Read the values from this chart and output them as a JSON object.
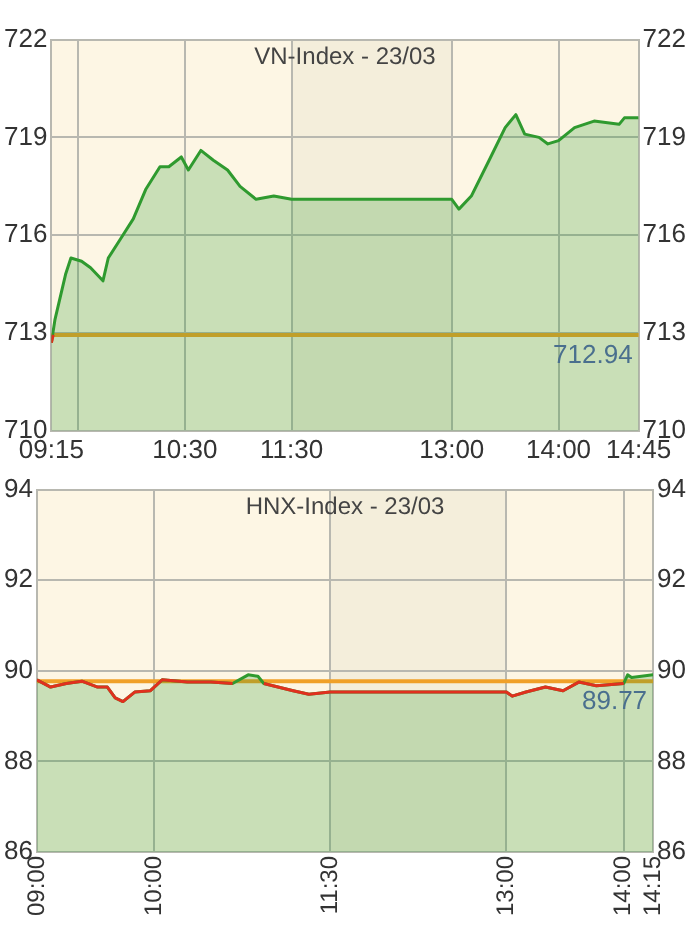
{
  "chart_data": [
    {
      "type": "area",
      "title": "VN-Index - 23/03",
      "grid": true,
      "xlim": [
        9.25,
        14.75
      ],
      "xticks": [
        {
          "value": 9.25,
          "label": "09:15"
        },
        {
          "value": 9.5,
          "label": null
        },
        {
          "value": 10.5,
          "label": "10:30"
        },
        {
          "value": 11.5,
          "label": "11:30"
        },
        {
          "value": 13,
          "label": "13:00"
        },
        {
          "value": 14,
          "label": "14:00"
        },
        {
          "value": 14.75,
          "label": "14:45"
        }
      ],
      "ylim": [
        710,
        722
      ],
      "yticks": [
        710,
        713,
        716,
        719,
        722
      ],
      "y2lim": [
        710,
        722
      ],
      "y2ticks": [
        710,
        713,
        716,
        719,
        722
      ],
      "ref_lines": [
        {
          "axis": "y",
          "value": 712.94,
          "label": "712.94",
          "color": "#f0a028"
        }
      ],
      "bands": [
        {
          "axis": "x",
          "from": 11.5,
          "to": 13,
          "color": "#f4eedb"
        }
      ],
      "series": [
        {
          "color": "#2f9a2f",
          "x": [
            9.25,
            9.283,
            9.383,
            9.433,
            9.533,
            9.617,
            9.733,
            9.783,
            9.9,
            10.017,
            10.133,
            10.267,
            10.35,
            10.467,
            10.533,
            10.65,
            10.767,
            10.9,
            11.017,
            11.167,
            11.333,
            11.5,
            13,
            13.067,
            13.183,
            13.35,
            13.5,
            13.6,
            13.683,
            13.817,
            13.9,
            14,
            14.15,
            14.333,
            14.567,
            14.617,
            14.75
          ],
          "values": [
            712.7,
            713.4,
            714.8,
            715.3,
            715.2,
            715.0,
            714.6,
            715.3,
            715.9,
            716.5,
            717.4,
            718.1,
            718.1,
            718.4,
            718.0,
            718.6,
            718.3,
            718.0,
            717.5,
            717.1,
            717.2,
            717.1,
            717.1,
            716.8,
            717.2,
            718.3,
            719.3,
            719.7,
            719.1,
            719.0,
            718.8,
            718.9,
            719.3,
            719.5,
            719.4,
            719.6,
            719.6
          ]
        },
        {
          "type": "line",
          "color": "#e0301e",
          "x": [
            9.25,
            9.267
          ],
          "values": [
            712.7,
            712.94
          ]
        }
      ]
    },
    {
      "type": "area",
      "title": "HNX-Index - 23/03",
      "grid": true,
      "xlim": [
        9,
        14.25
      ],
      "xticks": [
        {
          "value": 9,
          "label": "09:00"
        },
        {
          "value": 10,
          "label": "10:00"
        },
        {
          "value": 11.5,
          "label": "11:30"
        },
        {
          "value": 13,
          "label": "13:00"
        },
        {
          "value": 14,
          "label": "14:00"
        },
        {
          "value": 14.25,
          "label": "14:15"
        }
      ],
      "ylim": [
        86,
        94
      ],
      "yticks": [
        86,
        88,
        90,
        92,
        94
      ],
      "y2lim": [
        86,
        94
      ],
      "y2ticks": [
        86,
        88,
        90,
        92,
        94
      ],
      "ref_lines": [
        {
          "axis": "y",
          "value": 89.77,
          "label": "89.77",
          "color": "#f0a028"
        }
      ],
      "bands": [
        {
          "axis": "x",
          "from": 11.5,
          "to": 13,
          "color": "#f4eedb"
        }
      ],
      "series": [
        {
          "color": "#2f9a2f",
          "x": [
            9,
            9.117,
            9.25,
            9.383,
            9.517,
            9.6,
            9.667,
            9.733,
            9.833,
            9.967,
            10.067,
            10.283,
            10.483,
            10.667,
            10.8,
            10.883,
            10.933,
            11.183,
            11.317,
            11.5,
            13,
            13.05,
            13.167,
            13.333,
            13.483,
            13.617,
            13.767,
            14,
            14.033,
            14.067,
            14.15,
            14.25
          ],
          "values": [
            89.8,
            89.64,
            89.72,
            89.77,
            89.64,
            89.64,
            89.4,
            89.32,
            89.53,
            89.56,
            89.8,
            89.75,
            89.75,
            89.72,
            89.91,
            89.88,
            89.72,
            89.56,
            89.48,
            89.53,
            89.53,
            89.44,
            89.53,
            89.64,
            89.56,
            89.75,
            89.67,
            89.72,
            89.91,
            89.85,
            89.88,
            89.91
          ]
        },
        {
          "type": "line",
          "color": "#e0301e",
          "x": [
            9,
            9.117,
            9.25,
            9.383,
            9.517,
            9.6,
            9.667,
            9.733,
            9.833,
            9.967,
            10.067,
            10.283,
            10.483,
            10.667,
            10.8,
            10.883,
            10.933,
            11.183,
            11.317,
            11.5,
            13,
            13.05,
            13.167,
            13.333,
            13.483,
            13.617,
            13.767,
            14
          ],
          "values": [
            89.8,
            89.64,
            89.72,
            89.77,
            89.64,
            89.64,
            89.4,
            89.32,
            89.53,
            89.56,
            89.8,
            89.75,
            89.75,
            89.72,
            null,
            null,
            89.72,
            89.56,
            89.48,
            89.53,
            89.53,
            89.44,
            89.53,
            89.64,
            89.56,
            89.75,
            89.67,
            89.72
          ]
        }
      ]
    }
  ]
}
